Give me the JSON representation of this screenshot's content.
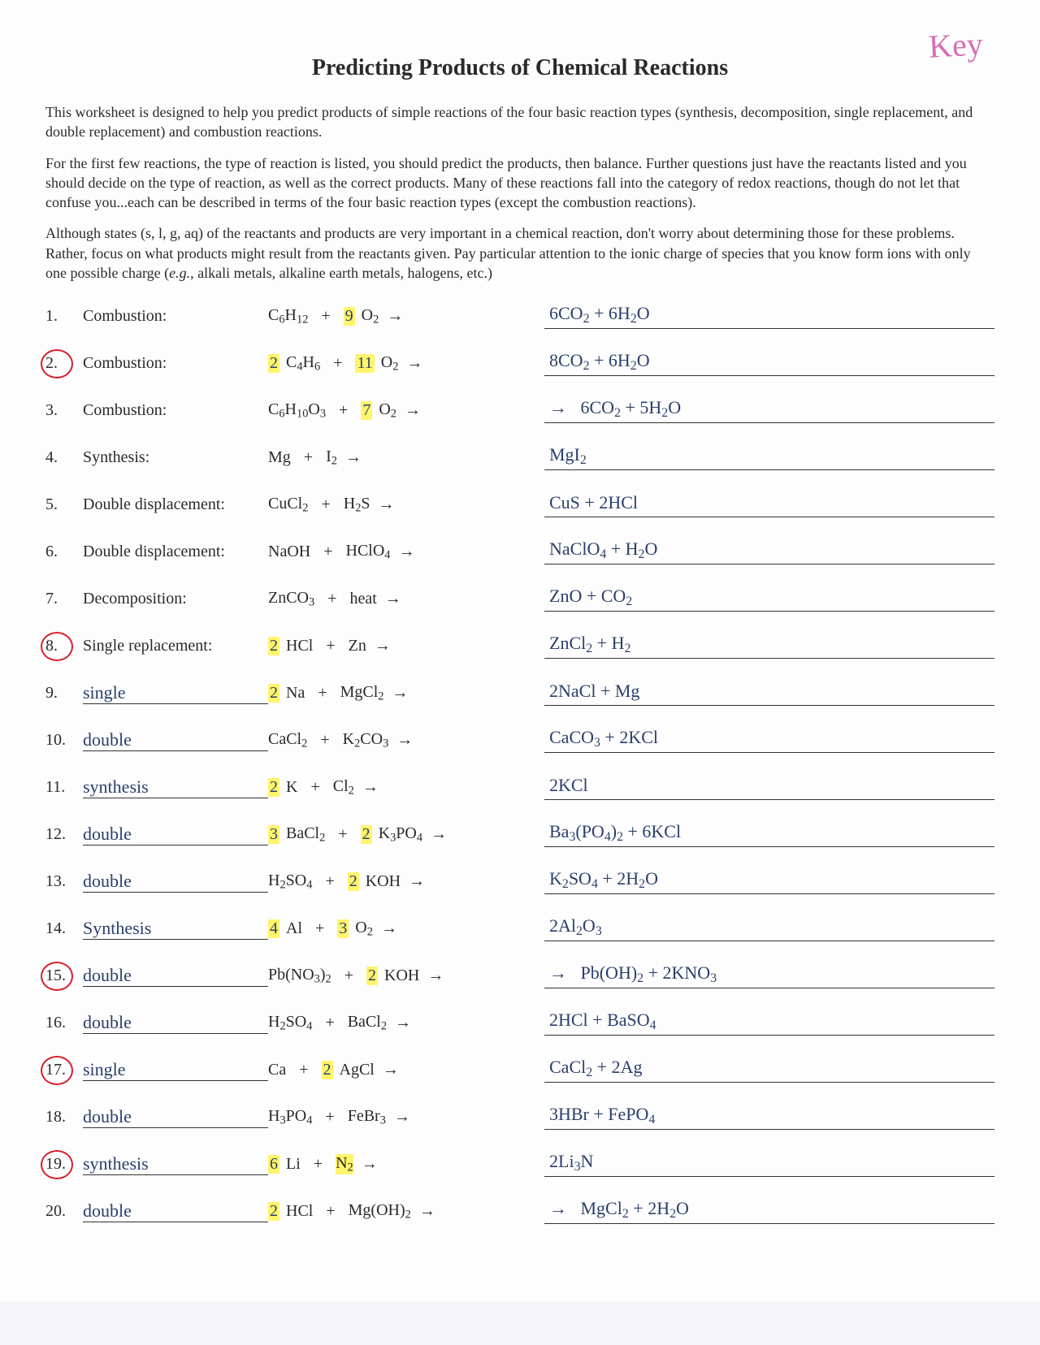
{
  "key_note": "Key",
  "title": "Predicting Products of Chemical Reactions",
  "intro": [
    "This worksheet is designed to help you predict products of simple reactions of the four basic reaction types (synthesis, decomposition, single replacement, and double replacement) and combustion reactions.",
    "For the first few reactions, the type of reaction is listed, you should predict the products, then balance. Further questions just have the reactants listed and you should decide on the type of reaction, as well as the correct products. Many of these reactions fall into the category of redox reactions, though do not let that confuse you...each can be described in terms of the four basic reaction types (except the combustion reactions).",
    "Although states (s, l, g, aq) of the reactants and products are very important in a chemical reaction, don't worry about determining those for these problems. Rather, focus on what products might result from the reactants given. Pay particular attention to the ionic charge of species that you know form ions with only one possible charge (e.g., alkali metals, alkaline earth metals, halogens, etc.)"
  ],
  "problems": [
    {
      "n": "1.",
      "circled": false,
      "type": "Combustion:",
      "type_hand": false,
      "r1_coef": "",
      "r1_hl": false,
      "r1_html": "C<sub>6</sub>H<sub>12</sub>",
      "r2_coef": "9",
      "r2_hl": true,
      "r2_html": "O<sub>2</sub>",
      "prod_html": "6CO<sub>2</sub> + 6H<sub>2</sub>O",
      "lead_arrow": false
    },
    {
      "n": "2.",
      "circled": true,
      "type": "Combustion:",
      "type_hand": false,
      "r1_coef": "2",
      "r1_hl": true,
      "r1_html": "C<sub>4</sub>H<sub>6</sub>",
      "r2_coef": "11",
      "r2_hl": true,
      "r2_html": "O<sub>2</sub>",
      "prod_html": "8CO<sub>2</sub> + 6H<sub>2</sub>O",
      "lead_arrow": false
    },
    {
      "n": "3.",
      "circled": false,
      "type": "Combustion:",
      "type_hand": false,
      "r1_coef": "",
      "r1_hl": false,
      "r1_html": "C<sub>6</sub>H<sub>10</sub>O<sub>3</sub>",
      "r2_coef": "7",
      "r2_hl": true,
      "r2_html": "O<sub>2</sub>",
      "prod_html": "6CO<sub>2</sub> + 5H<sub>2</sub>O",
      "lead_arrow": true
    },
    {
      "n": "4.",
      "circled": false,
      "type": "Synthesis:",
      "type_hand": false,
      "r1_coef": "",
      "r1_hl": false,
      "r1_html": "Mg",
      "r2_coef": "",
      "r2_hl": false,
      "r2_html": "I<sub>2</sub>",
      "prod_html": "MgI<sub>2</sub>",
      "lead_arrow": false
    },
    {
      "n": "5.",
      "circled": false,
      "type": "Double displacement:",
      "type_hand": false,
      "r1_coef": "",
      "r1_hl": false,
      "r1_html": "CuCl<sub>2</sub>",
      "r2_coef": "",
      "r2_hl": false,
      "r2_html": "H<sub>2</sub>S",
      "prod_html": "CuS + 2HCl",
      "lead_arrow": false
    },
    {
      "n": "6.",
      "circled": false,
      "type": "Double displacement:",
      "type_hand": false,
      "r1_coef": "",
      "r1_hl": false,
      "r1_html": "NaOH",
      "r2_coef": "",
      "r2_hl": false,
      "r2_html": "HClO<sub>4</sub>",
      "prod_html": "NaClO<sub>4</sub> + H<sub>2</sub>O",
      "lead_arrow": false
    },
    {
      "n": "7.",
      "circled": false,
      "type": "Decomposition:",
      "type_hand": false,
      "r1_coef": "",
      "r1_hl": false,
      "r1_html": "ZnCO<sub>3</sub>",
      "r2_coef": "",
      "r2_hl": false,
      "r2_html": "heat",
      "prod_html": "ZnO + CO<sub>2</sub>",
      "lead_arrow": false
    },
    {
      "n": "8.",
      "circled": true,
      "type": "Single replacement:",
      "type_hand": false,
      "r1_coef": "2",
      "r1_hl": true,
      "r1_html": "HCl",
      "r2_coef": "",
      "r2_hl": false,
      "r2_html": "Zn",
      "prod_html": "ZnCl<sub>2</sub> + H<sub>2</sub>",
      "lead_arrow": false
    },
    {
      "n": "9.",
      "circled": false,
      "type": "single",
      "type_hand": true,
      "r1_coef": "2",
      "r1_hl": true,
      "r1_html": "Na",
      "r2_coef": "",
      "r2_hl": false,
      "r2_html": "MgCl<sub>2</sub>",
      "prod_html": "2NaCl + Mg",
      "lead_arrow": false
    },
    {
      "n": "10.",
      "circled": false,
      "type": "double",
      "type_hand": true,
      "r1_coef": "",
      "r1_hl": false,
      "r1_html": "CaCl<sub>2</sub>",
      "r2_coef": "",
      "r2_hl": false,
      "r2_html": "K<sub>2</sub>CO<sub>3</sub>",
      "prod_html": "CaCO<sub>3</sub> + 2KCl",
      "lead_arrow": false
    },
    {
      "n": "11.",
      "circled": false,
      "type": "synthesis",
      "type_hand": true,
      "r1_coef": "2",
      "r1_hl": true,
      "r1_html": "K",
      "r2_coef": "",
      "r2_hl": false,
      "r2_html": "Cl<sub>2</sub>",
      "prod_html": "2KCl",
      "lead_arrow": false
    },
    {
      "n": "12.",
      "circled": false,
      "type": "double",
      "type_hand": true,
      "r1_coef": "3",
      "r1_hl": true,
      "r1_html": "BaCl<sub>2</sub>",
      "r2_coef": "2",
      "r2_hl": true,
      "r2_html": "K<sub>3</sub>PO<sub>4</sub>",
      "prod_html": "Ba<sub>3</sub>(PO<sub>4</sub>)<sub>2</sub> + 6KCl",
      "lead_arrow": false
    },
    {
      "n": "13.",
      "circled": false,
      "type": "double",
      "type_hand": true,
      "r1_coef": "",
      "r1_hl": false,
      "r1_html": "H<sub>2</sub>SO<sub>4</sub>",
      "r2_coef": "2",
      "r2_hl": true,
      "r2_html": "KOH",
      "prod_html": "K<sub>2</sub>SO<sub>4</sub> + 2H<sub>2</sub>O",
      "lead_arrow": false
    },
    {
      "n": "14.",
      "circled": false,
      "type": "Synthesis",
      "type_hand": true,
      "r1_coef": "4",
      "r1_hl": true,
      "r1_html": "Al",
      "r2_coef": "3",
      "r2_hl": true,
      "r2_html": "O<sub>2</sub>",
      "prod_html": "2Al<sub>2</sub>O<sub>3</sub>",
      "lead_arrow": false
    },
    {
      "n": "15.",
      "circled": true,
      "type": "double",
      "type_hand": true,
      "r1_coef": "",
      "r1_hl": false,
      "r1_html": "Pb(NO<sub>3</sub>)<sub>2</sub>",
      "r2_coef": "2",
      "r2_hl": true,
      "r2_html": "KOH",
      "prod_html": "Pb(OH)<sub>2</sub> + 2KNO<sub>3</sub>",
      "lead_arrow": true
    },
    {
      "n": "16.",
      "circled": false,
      "type": "double",
      "type_hand": true,
      "r1_coef": "",
      "r1_hl": false,
      "r1_html": "H<sub>2</sub>SO<sub>4</sub>",
      "r2_coef": "",
      "r2_hl": false,
      "r2_html": "BaCl<sub>2</sub>",
      "prod_html": "2HCl + BaSO<sub>4</sub>",
      "lead_arrow": false
    },
    {
      "n": "17.",
      "circled": true,
      "type": "single",
      "type_hand": true,
      "r1_coef": "",
      "r1_hl": false,
      "r1_html": "Ca",
      "r2_coef": "2",
      "r2_hl": true,
      "r2_html": "AgCl",
      "prod_html": "CaCl<sub>2</sub> + 2Ag",
      "lead_arrow": false
    },
    {
      "n": "18.",
      "circled": false,
      "type": "double",
      "type_hand": true,
      "r1_coef": "",
      "r1_hl": false,
      "r1_html": "H<sub>3</sub>PO<sub>4</sub>",
      "r2_coef": "",
      "r2_hl": false,
      "r2_html": "FeBr<sub>3</sub>",
      "prod_html": "3HBr + FePO<sub>4</sub>",
      "lead_arrow": false
    },
    {
      "n": "19.",
      "circled": true,
      "type": "synthesis",
      "type_hand": true,
      "r1_coef": "6",
      "r1_hl": true,
      "r1_html": "Li",
      "r2_coef": "",
      "r2_hl": true,
      "r2_html": "N<sub>2</sub>",
      "prod_html": "2Li<sub>3</sub>N",
      "lead_arrow": false
    },
    {
      "n": "20.",
      "circled": false,
      "type": "double",
      "type_hand": true,
      "r1_coef": "2",
      "r1_hl": true,
      "r1_html": "HCl",
      "r2_coef": "",
      "r2_hl": false,
      "r2_html": "Mg(OH)<sub>2</sub>",
      "prod_html": "MgCl<sub>2</sub> + 2H<sub>2</sub>O",
      "lead_arrow": true
    }
  ],
  "colors": {
    "ink": "#2a3f6b",
    "highlight": "#fff46a",
    "circle": "#d81e2c",
    "key": "#d66fb6"
  }
}
